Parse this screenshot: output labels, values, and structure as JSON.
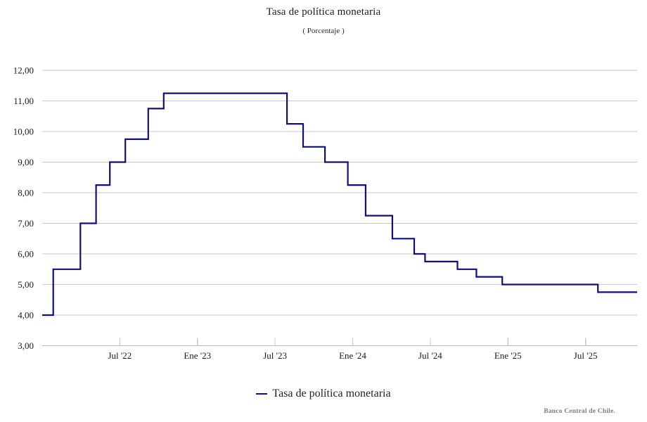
{
  "header": {
    "title": "Tasa de política monetaria",
    "subtitle": "( Porcentaje )"
  },
  "legend": {
    "items": [
      {
        "label": "Tasa de política monetaria",
        "color": "#10107d"
      }
    ]
  },
  "footer": {
    "credit": "Banco Central de Chile."
  },
  "colors": {
    "line": "#10107d",
    "grid": "#c9c9c9",
    "axis": "#b9b9b9",
    "tick": "#c9c9c9",
    "text": "#1a1a1a"
  },
  "chart_data": {
    "type": "line",
    "step": true,
    "title": "Tasa de política monetaria",
    "subtitle": "( Porcentaje )",
    "xlabel": "",
    "ylabel": "Porcentaje",
    "grid": true,
    "legend_position": "bottom",
    "ylim": [
      3,
      12
    ],
    "y_ticks": [
      {
        "value": 3,
        "label": "3,00"
      },
      {
        "value": 4,
        "label": "4,00"
      },
      {
        "value": 5,
        "label": "5,00"
      },
      {
        "value": 6,
        "label": "6,00"
      },
      {
        "value": 7,
        "label": "7,00"
      },
      {
        "value": 8,
        "label": "8,00"
      },
      {
        "value": 9,
        "label": "9,00"
      },
      {
        "value": 10,
        "label": "10,00"
      },
      {
        "value": 11,
        "label": "11,00"
      },
      {
        "value": 12,
        "label": "12,00"
      }
    ],
    "x_domain": [
      "2022-01-01",
      "2025-10-31"
    ],
    "x_ticks": [
      {
        "date": "2022-07-01",
        "label": "Jul '22"
      },
      {
        "date": "2023-01-01",
        "label": "Ene '23"
      },
      {
        "date": "2023-07-01",
        "label": "Jul '23"
      },
      {
        "date": "2024-01-01",
        "label": "Ene '24"
      },
      {
        "date": "2024-07-01",
        "label": "Jul '24"
      },
      {
        "date": "2025-01-01",
        "label": "Ene '25"
      },
      {
        "date": "2025-07-01",
        "label": "Jul '25"
      }
    ],
    "series": [
      {
        "name": "Tasa de política monetaria",
        "color": "#10107d",
        "points": [
          {
            "date": "2022-01-01",
            "value": 4.0
          },
          {
            "date": "2022-01-27",
            "value": 5.5
          },
          {
            "date": "2022-03-30",
            "value": 7.0
          },
          {
            "date": "2022-05-06",
            "value": 8.25
          },
          {
            "date": "2022-06-08",
            "value": 9.0
          },
          {
            "date": "2022-07-14",
            "value": 9.75
          },
          {
            "date": "2022-09-07",
            "value": 10.75
          },
          {
            "date": "2022-10-13",
            "value": 11.25
          },
          {
            "date": "2023-07-29",
            "value": 10.25
          },
          {
            "date": "2023-09-06",
            "value": 9.5
          },
          {
            "date": "2023-10-27",
            "value": 9.0
          },
          {
            "date": "2023-12-20",
            "value": 8.25
          },
          {
            "date": "2024-02-01",
            "value": 7.25
          },
          {
            "date": "2024-04-03",
            "value": 6.5
          },
          {
            "date": "2024-05-24",
            "value": 6.0
          },
          {
            "date": "2024-06-19",
            "value": 5.75
          },
          {
            "date": "2024-09-04",
            "value": 5.5
          },
          {
            "date": "2024-10-18",
            "value": 5.25
          },
          {
            "date": "2024-12-18",
            "value": 5.0
          },
          {
            "date": "2025-07-30",
            "value": 4.75
          }
        ]
      }
    ]
  }
}
